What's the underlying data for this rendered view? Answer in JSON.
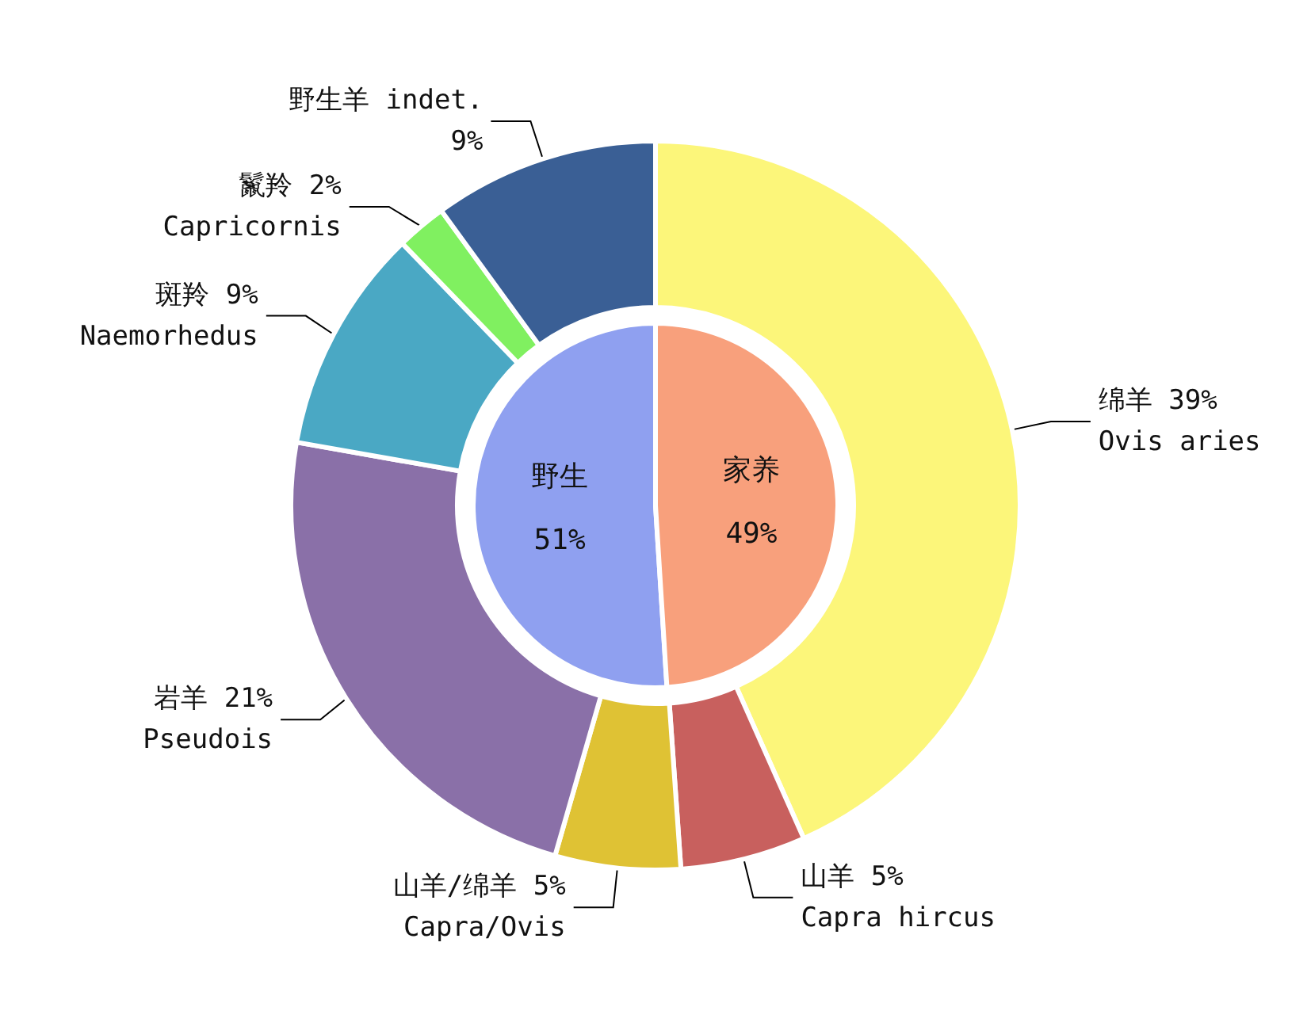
{
  "chart_data": [
    {
      "type": "pie",
      "categories": [
        "野生",
        "家养"
      ],
      "values": [
        51,
        49
      ],
      "colors": [
        "#8fa0f0",
        "#f8a07c"
      ],
      "value_labels": [
        "51%",
        "49%"
      ]
    },
    {
      "type": "donut",
      "categories": [
        "绵羊 39%\nOvis aries",
        "山羊 5%\nCapra hircus",
        "山羊/绵羊 5%\nCapra/Ovis",
        "岩羊 21%\nPseudois",
        "斑羚 9%\nNaemorhedus",
        "鬣羚 2%\nCapricornis",
        "野生羊 indet.\n9%"
      ],
      "values": [
        39,
        5,
        5,
        21,
        9,
        2,
        9
      ],
      "colors": [
        "#fcf67a",
        "#c8605e",
        "#dfc234",
        "#8a70a8",
        "#4aa8c4",
        "#80f060",
        "#3a5f95"
      ]
    }
  ]
}
